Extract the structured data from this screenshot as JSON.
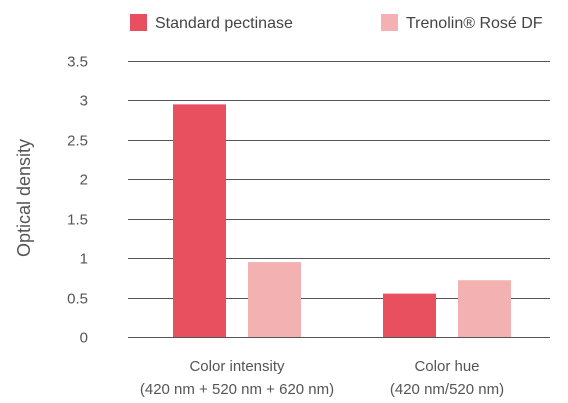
{
  "chart_data": {
    "type": "bar",
    "ylabel": "Optical density",
    "ylim": [
      0,
      3.5
    ],
    "yticks": [
      "0",
      "0.5",
      "1",
      "1.5",
      "2",
      "2.5",
      "3",
      "3.5"
    ],
    "grid": true,
    "legend_position": "top",
    "categories": [
      {
        "line1": "Color intensity",
        "line2": "(420 nm + 520 nm + 620 nm)"
      },
      {
        "line1": "Color hue",
        "line2": "(420 nm/520 nm)"
      }
    ],
    "series": [
      {
        "name": "Standard pectinase",
        "color": "#e8505f",
        "values": [
          2.95,
          0.55
        ]
      },
      {
        "name": "Trenolin® Rosé DF",
        "color": "#f4b1b1",
        "values": [
          0.95,
          0.72
        ]
      }
    ]
  }
}
